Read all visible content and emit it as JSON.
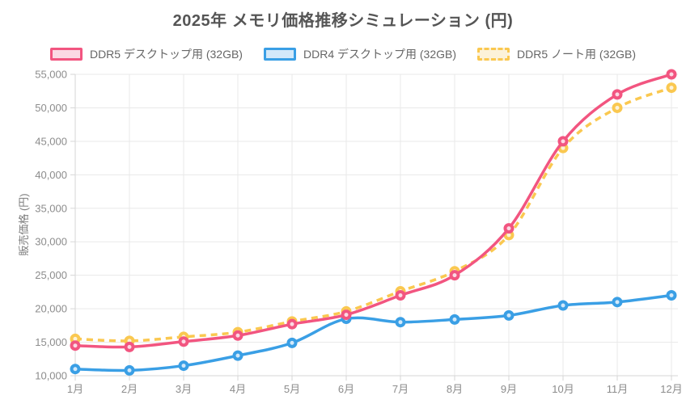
{
  "chart_data": {
    "type": "line",
    "title": "2025年 メモリ価格推移シミュレーション (円)",
    "ylabel": "販売価格 (円)",
    "xlabel": "",
    "categories": [
      "1月",
      "2月",
      "3月",
      "4月",
      "5月",
      "6月",
      "7月",
      "8月",
      "9月",
      "10月",
      "11月",
      "12月"
    ],
    "ylim": [
      10000,
      55000
    ],
    "ytick_step": 5000,
    "grid": true,
    "legend_position": "top",
    "colors": {
      "grid": "#e9e9e9",
      "axis_border": "#d6d6d6",
      "tick_text": "#8c8c8c",
      "title_text": "#555555"
    },
    "series": [
      {
        "key": "ddr5-desktop",
        "name": "DDR5 デスクトップ用 (32GB)",
        "color": "#F25580",
        "fill": "#FBD9E4",
        "line_style": "solid",
        "values": [
          14500,
          14300,
          15100,
          16000,
          17700,
          19100,
          22000,
          25000,
          32000,
          45000,
          52000,
          55000
        ]
      },
      {
        "key": "ddr4-desktop",
        "name": "DDR4 デスクトップ用 (32GB)",
        "color": "#3A9FE5",
        "fill": "#D3E9FA",
        "line_style": "solid",
        "values": [
          11000,
          10800,
          11500,
          13000,
          14900,
          18500,
          18000,
          18400,
          19000,
          20500,
          21000,
          22000
        ]
      },
      {
        "key": "ddr5-note",
        "name": "DDR5 ノート用 (32GB)",
        "color": "#FAC850",
        "fill": "#FCF2D9",
        "line_style": "dashed",
        "values": [
          15500,
          15200,
          15800,
          16500,
          18100,
          19600,
          22600,
          25600,
          31000,
          44000,
          50000,
          53000
        ]
      }
    ]
  }
}
